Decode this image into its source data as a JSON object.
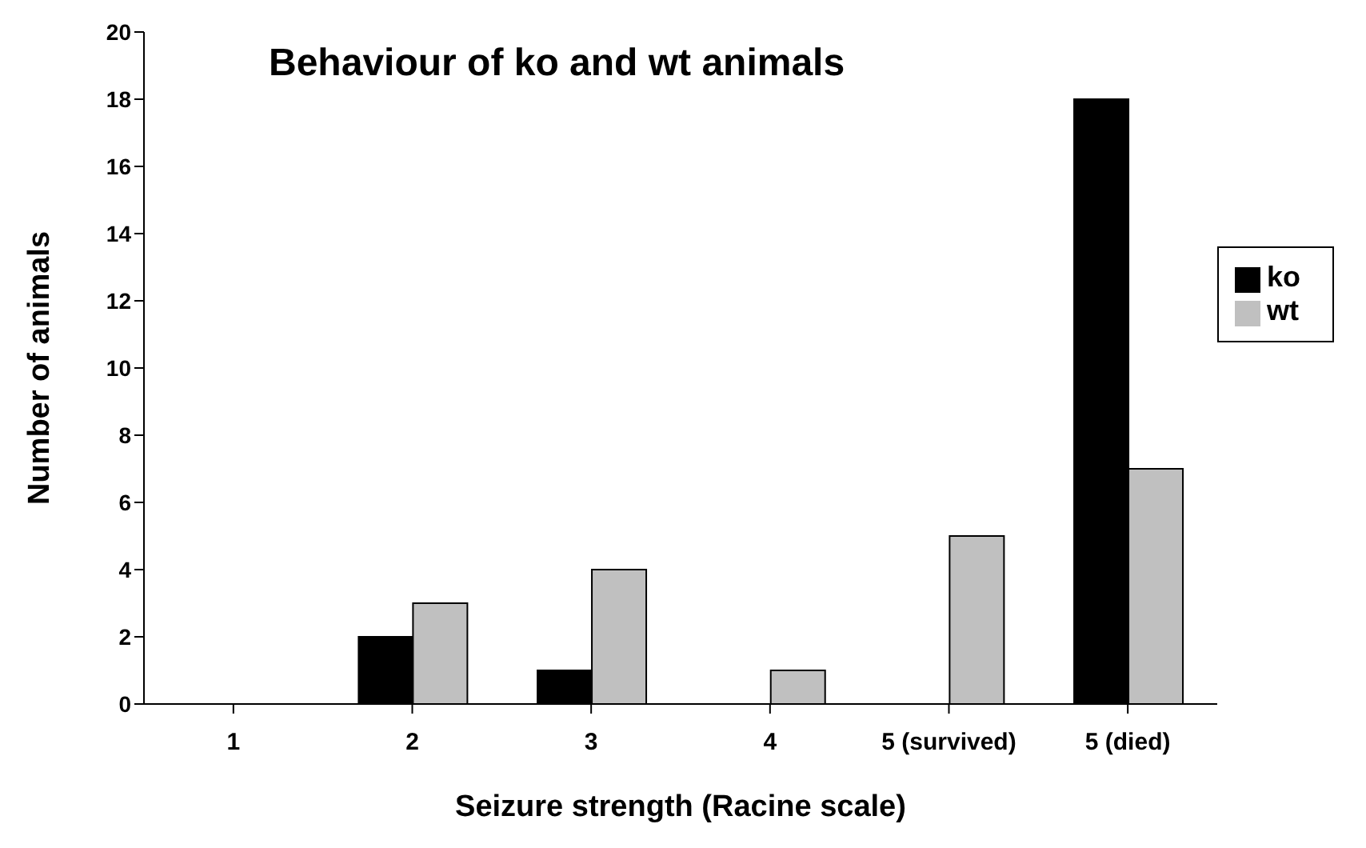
{
  "chart_data": {
    "type": "bar",
    "title": "Behaviour of ko and wt animals",
    "xlabel": "Seizure strength (Racine scale)",
    "ylabel": "Number of animals",
    "categories": [
      "1",
      "2",
      "3",
      "4",
      "5 (survived)",
      "5 (died)"
    ],
    "series": [
      {
        "name": "ko",
        "color": "#000000",
        "values": [
          0,
          2,
          1,
          0,
          0,
          18
        ]
      },
      {
        "name": "wt",
        "color": "#c0c0c0",
        "values": [
          0,
          3,
          4,
          1,
          5,
          7
        ]
      }
    ],
    "ylim": [
      0,
      20
    ],
    "yticks": [
      0,
      2,
      4,
      6,
      8,
      10,
      12,
      14,
      16,
      18,
      20
    ],
    "grid": false,
    "legend": "right"
  }
}
